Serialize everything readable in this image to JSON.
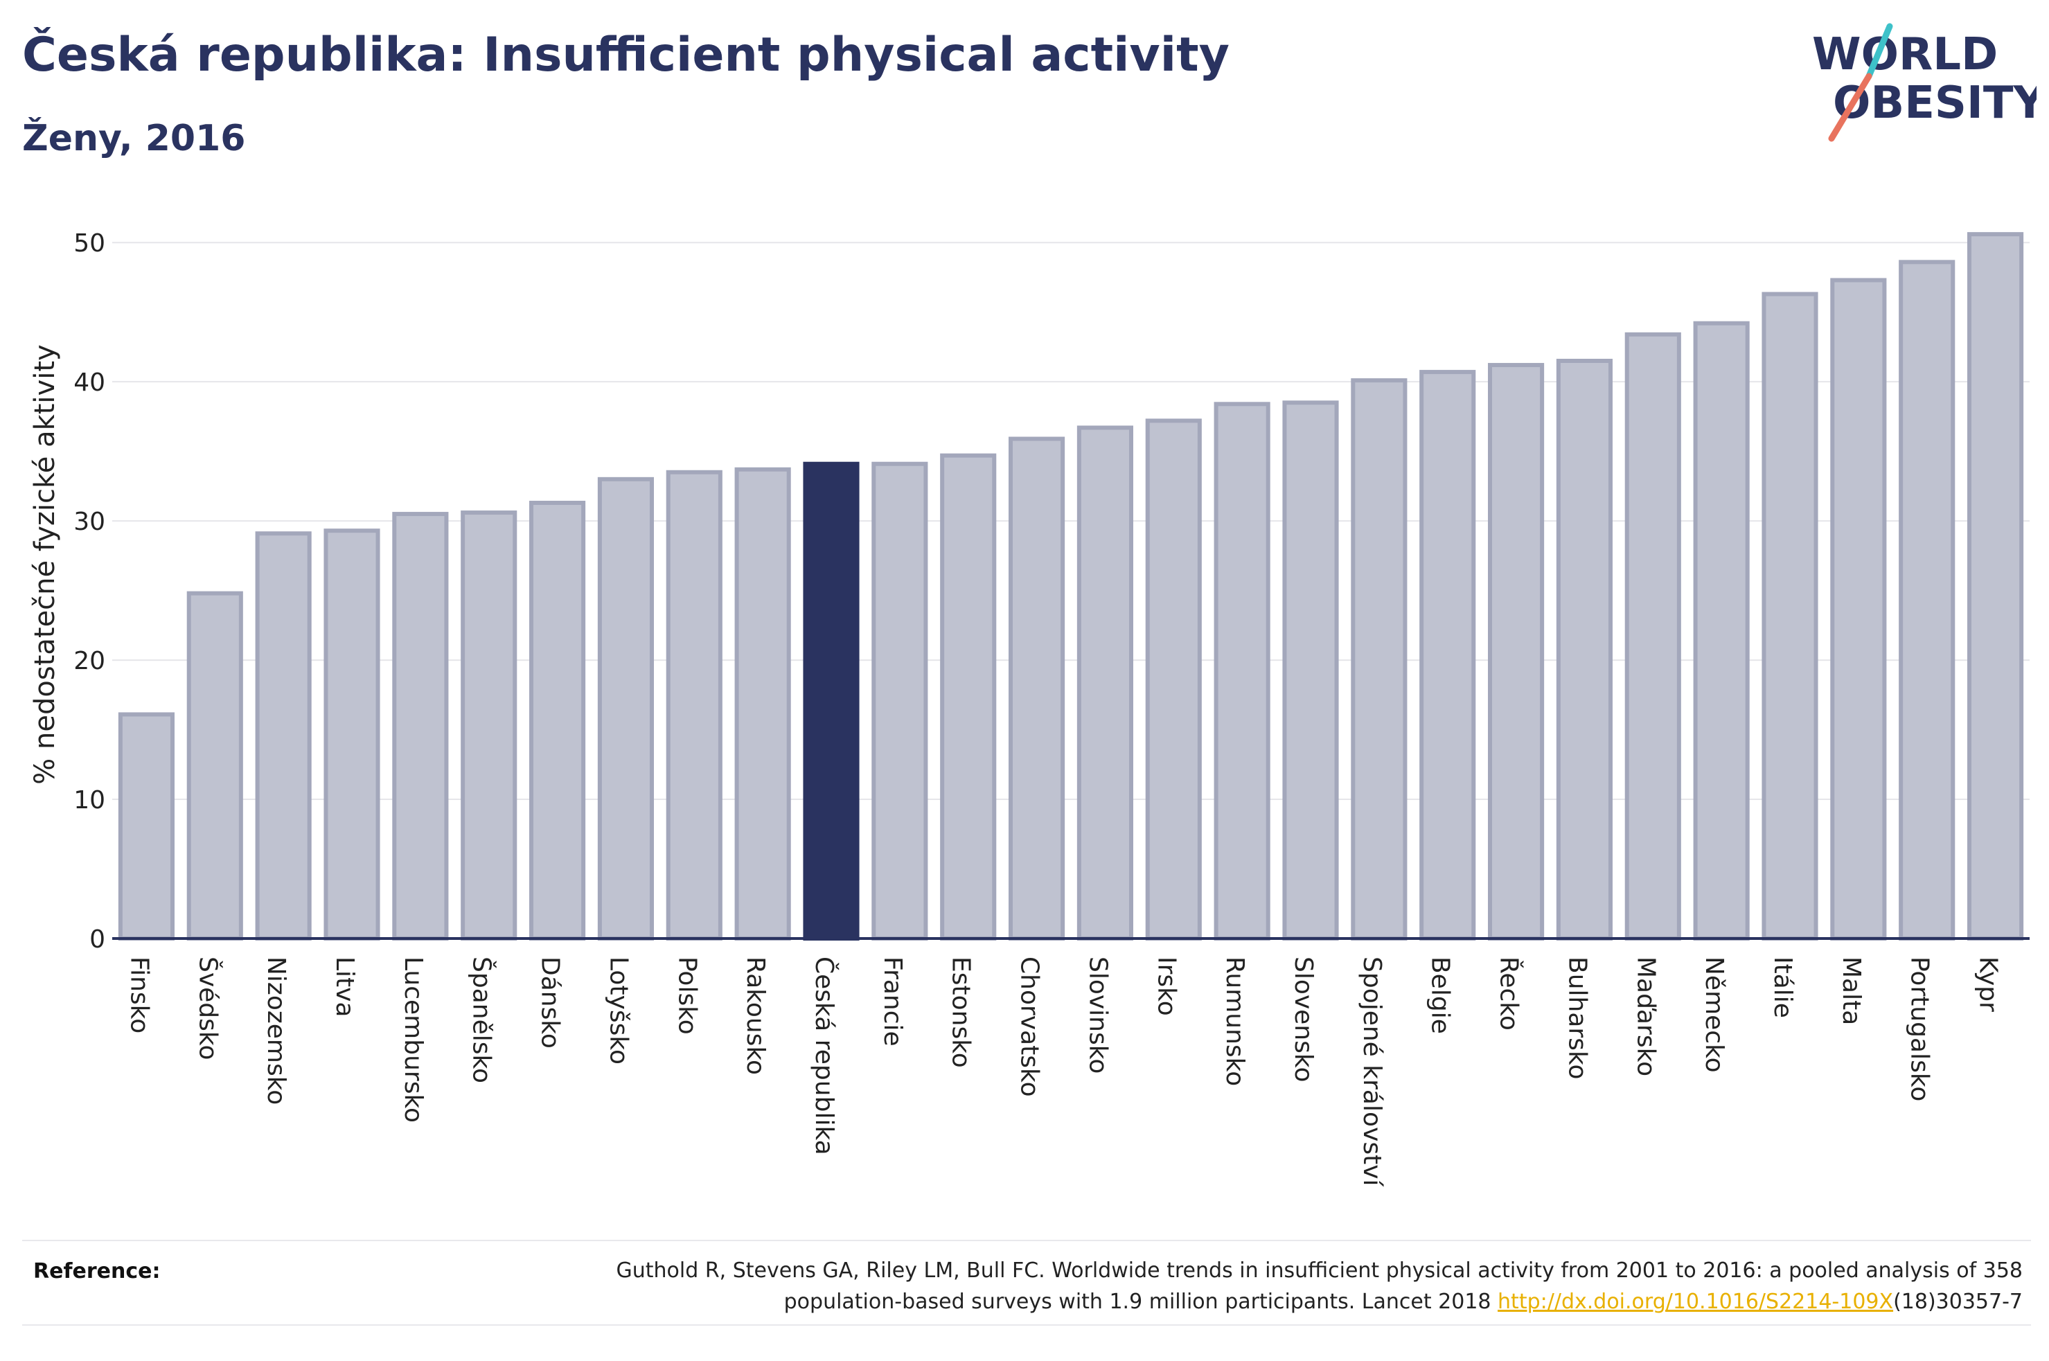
{
  "header": {
    "title": "Česká republika: Insufficient physical activity",
    "subtitle": "Ženy, 2016"
  },
  "logo": {
    "line1": "WORLD",
    "line2": "OBESITY"
  },
  "reference": {
    "label": "Reference:",
    "text_line1": "Guthold R, Stevens GA, Riley LM, Bull FC. Worldwide trends in insufficient physical activity from 2001 to 2016: a pooled analysis of 358",
    "text_line2": "population-based surveys with 1.9 million participants. Lancet 2018",
    "link": "http://dx.doi.org/10.1016/S2214-109X",
    "text_after_link": "(18)30357-7"
  },
  "chart_data": {
    "type": "bar",
    "ylabel": "% nedostatečné fyzické aktivity",
    "ylim": [
      0,
      52
    ],
    "yticks": [
      0,
      10,
      20,
      30,
      40,
      50
    ],
    "grid": true,
    "highlight": "Česká republika",
    "colors": {
      "bar": "#bfc2d0",
      "bar_edge": "#a3a7bb",
      "highlight": "#2a3360",
      "axis": "#2a3360",
      "grid": "#e6e6ea"
    },
    "categories": [
      "Finsko",
      "Švédsko",
      "Nizozemsko",
      "Litva",
      "Lucembursko",
      "Španělsko",
      "Dánsko",
      "Lotyšsko",
      "Polsko",
      "Rakousko",
      "Česká republika",
      "Francie",
      "Estonsko",
      "Chorvatsko",
      "Slovinsko",
      "Irsko",
      "Rumunsko",
      "Slovensko",
      "Spojené království",
      "Belgie",
      "Řecko",
      "Bulharsko",
      "Maďarsko",
      "Německo",
      "Itálie",
      "Malta",
      "Portugalsko",
      "Kypr"
    ],
    "values": [
      16.1,
      24.8,
      29.1,
      29.3,
      30.5,
      30.6,
      31.3,
      33.0,
      33.5,
      33.7,
      34.1,
      34.1,
      34.7,
      35.9,
      36.7,
      37.2,
      38.4,
      38.5,
      40.1,
      40.7,
      41.2,
      41.5,
      43.4,
      44.2,
      46.3,
      47.3,
      48.6,
      50.6
    ]
  }
}
